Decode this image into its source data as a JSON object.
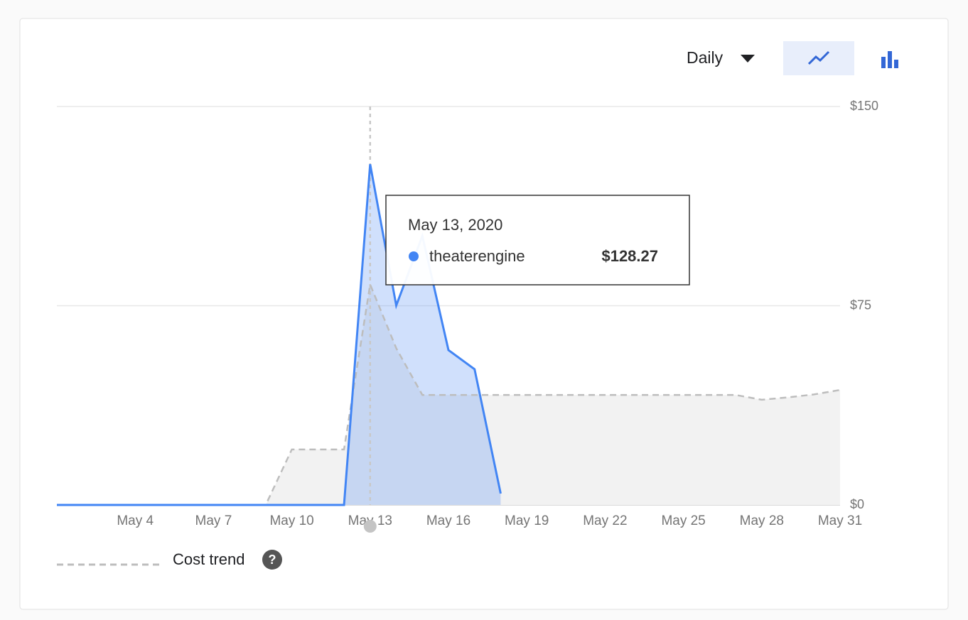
{
  "chart_data": {
    "type": "line",
    "control": "Daily",
    "categories": [
      null,
      null,
      null,
      "May 4",
      null,
      null,
      "May 7",
      null,
      null,
      "May 10",
      null,
      null,
      "May 13",
      null,
      null,
      "May 16",
      null,
      null,
      "May 19",
      null,
      null,
      "May 22",
      null,
      null,
      "May 25",
      null,
      null,
      "May 28",
      null,
      null,
      "May 31"
    ],
    "series": [
      {
        "name": "theaterengine",
        "color": "#4285f4",
        "values": [
          0,
          0,
          0,
          0,
          0,
          0,
          0,
          0,
          0,
          0,
          0,
          0,
          128.27,
          75.1,
          101.3,
          58.3,
          51.1,
          4.3,
          null,
          null,
          null,
          null,
          null,
          null,
          null,
          null,
          null,
          null,
          null,
          null,
          null
        ]
      },
      {
        "name": "Cost trend",
        "color": "#bdbdbd",
        "values": [
          0,
          0,
          0,
          0,
          0,
          0,
          0,
          0,
          0,
          20.9,
          20.9,
          20.9,
          83,
          59,
          41.4,
          41.4,
          41.4,
          41.4,
          41.4,
          41.4,
          41.4,
          41.4,
          41.4,
          41.4,
          41.4,
          41.4,
          41.4,
          39.6,
          40.5,
          41.6,
          43.3
        ]
      }
    ],
    "ylim": [
      0,
      150
    ],
    "yticks": [
      {
        "value": 0,
        "label": "$0"
      },
      {
        "value": 75,
        "label": "$75"
      },
      {
        "value": 150,
        "label": "$150"
      }
    ],
    "grid": true,
    "tooltip": {
      "title": "May 13, 2020",
      "label": "$128.27"
    }
  }
}
